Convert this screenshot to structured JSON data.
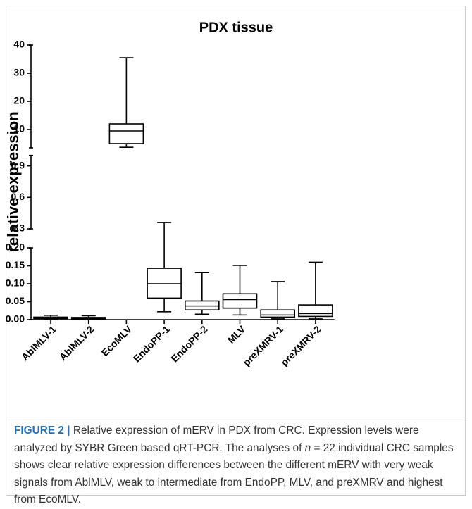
{
  "chart_data": {
    "type": "box",
    "title": "PDX tissue",
    "y_label": "relative expression",
    "categories": [
      "AblMLV-1",
      "AblMLV-2",
      "EcoMLV",
      "EndoPP-1",
      "EndoPP-2",
      "MLV",
      "preXMRV-1",
      "preXMRV-2"
    ],
    "boxes": [
      {
        "min": 0.001,
        "q1": 0.003,
        "median": 0.005,
        "q3": 0.007,
        "max": 0.012
      },
      {
        "min": 0.001,
        "q1": 0.002,
        "median": 0.004,
        "q3": 0.006,
        "max": 0.011
      },
      {
        "min": 3.7,
        "q1": 5,
        "median": 9.5,
        "q3": 12,
        "max": 35.5
      },
      {
        "min": 0.022,
        "q1": 0.06,
        "median": 0.1,
        "q3": 0.143,
        "max": 0.36
      },
      {
        "min": 0.015,
        "q1": 0.027,
        "median": 0.038,
        "q3": 0.052,
        "max": 0.131
      },
      {
        "min": 0.013,
        "q1": 0.032,
        "median": 0.056,
        "q3": 0.072,
        "max": 0.151
      },
      {
        "min": 0.002,
        "q1": 0.007,
        "median": 0.013,
        "q3": 0.027,
        "max": 0.106
      },
      {
        "min": 0.002,
        "q1": 0.009,
        "median": 0.017,
        "q3": 0.041,
        "max": 0.16
      }
    ],
    "color": "#000000",
    "y_segments": [
      {
        "ylim": [
          3.5,
          40
        ],
        "yticks": [
          10,
          20,
          30,
          40
        ]
      },
      {
        "ylim": [
          0.3,
          1.0
        ],
        "yticks": [
          0.3,
          0.6,
          0.9
        ]
      },
      {
        "ylim": [
          0,
          0.2
        ],
        "yticks": [
          {
            "value": 0,
            "label": "0.00"
          },
          {
            "value": 0.05,
            "label": "0.05"
          },
          {
            "value": 0.1,
            "label": "0.10"
          },
          {
            "value": 0.15,
            "label": "0.15"
          },
          {
            "value": 0.2,
            "label": "0.20"
          }
        ]
      }
    ]
  },
  "caption": {
    "label": "FIGURE 2 |",
    "parts": [
      "Relative expression of mERV in PDX from CRC. Expression levels were analyzed by SYBR Green based qRT-PCR. The analyses of ",
      "n",
      " = 22 individual CRC samples shows clear relative expression differences between the different mERV with very weak signals from AblMLV, weak to intermediate from EndoPP, MLV, and preXMRV and highest from EcoMLV."
    ]
  }
}
